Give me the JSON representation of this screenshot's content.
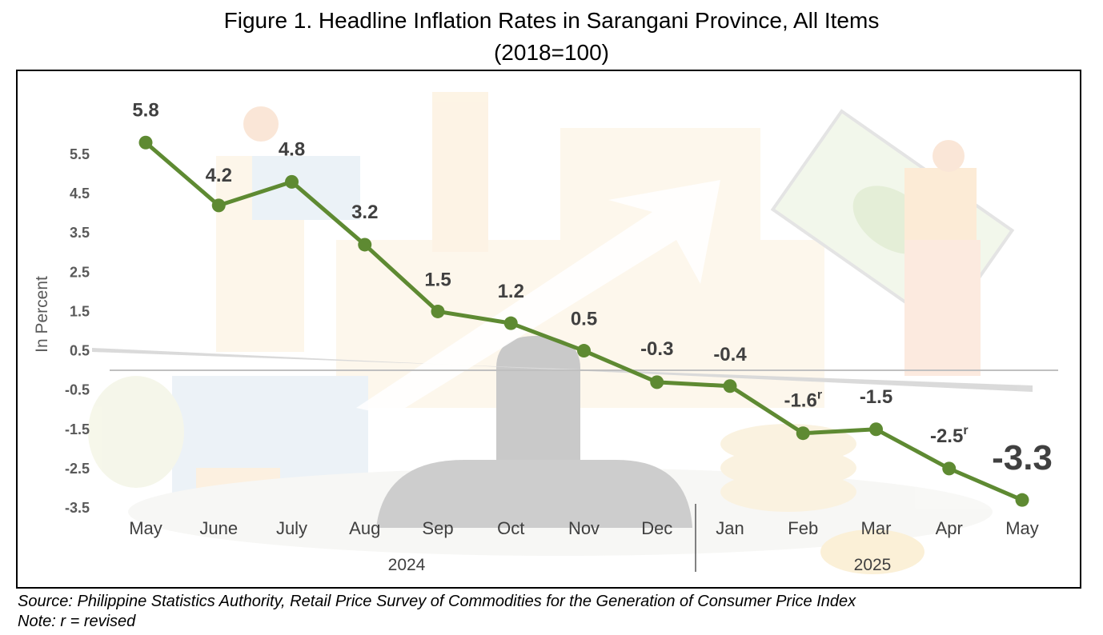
{
  "title_line1": "Figure 1. Headline Inflation Rates in Sarangani Province, All Items",
  "title_line2": "(2018=100)",
  "source": "Source: Philippine Statistics Authority, Retail Price Survey of Commodities for the Generation of Consumer Price Index",
  "note": "Note: r = revised",
  "colors": {
    "line": "#5e8a32",
    "axis": "#c0c0c0",
    "text": "#404040"
  },
  "chart_data": {
    "type": "line",
    "title": "Figure 1. Headline Inflation Rates in Sarangani Province, All Items",
    "subtitle": "(2018=100)",
    "ylabel": "In Percent",
    "xlabel": "",
    "ylim": [
      -3.5,
      5.5
    ],
    "yticks": [
      "5.5",
      "4.5",
      "3.5",
      "2.5",
      "1.5",
      "0.5",
      "-0.5",
      "-1.5",
      "-2.5",
      "-3.5"
    ],
    "ytick_values": [
      5.5,
      4.5,
      3.5,
      2.5,
      1.5,
      0.5,
      -0.5,
      -1.5,
      -2.5,
      -3.5
    ],
    "categories": [
      "May",
      "June",
      "July",
      "Aug",
      "Sep",
      "Oct",
      "Nov",
      "Dec",
      "Jan",
      "Feb",
      "Mar",
      "Apr",
      "May"
    ],
    "year_groups": [
      {
        "label": "2024",
        "start": 0,
        "end": 7
      },
      {
        "label": "2025",
        "start": 8,
        "end": 12
      }
    ],
    "series": [
      {
        "values": [
          5.8,
          4.2,
          4.8,
          3.2,
          1.5,
          1.2,
          0.5,
          -0.3,
          -0.4,
          -1.6,
          -1.5,
          -2.5,
          -3.3
        ],
        "labels": [
          "5.8",
          "4.2",
          "4.8",
          "3.2",
          "1.5",
          "1.2",
          "0.5",
          "-0.3",
          "-0.4",
          "-1.6",
          "-1.5",
          "-2.5",
          "-3.3"
        ],
        "revised": [
          false,
          false,
          false,
          false,
          false,
          false,
          false,
          false,
          false,
          true,
          false,
          true,
          false
        ]
      }
    ],
    "revised_marker": "r",
    "grid": false,
    "legend": "none"
  }
}
